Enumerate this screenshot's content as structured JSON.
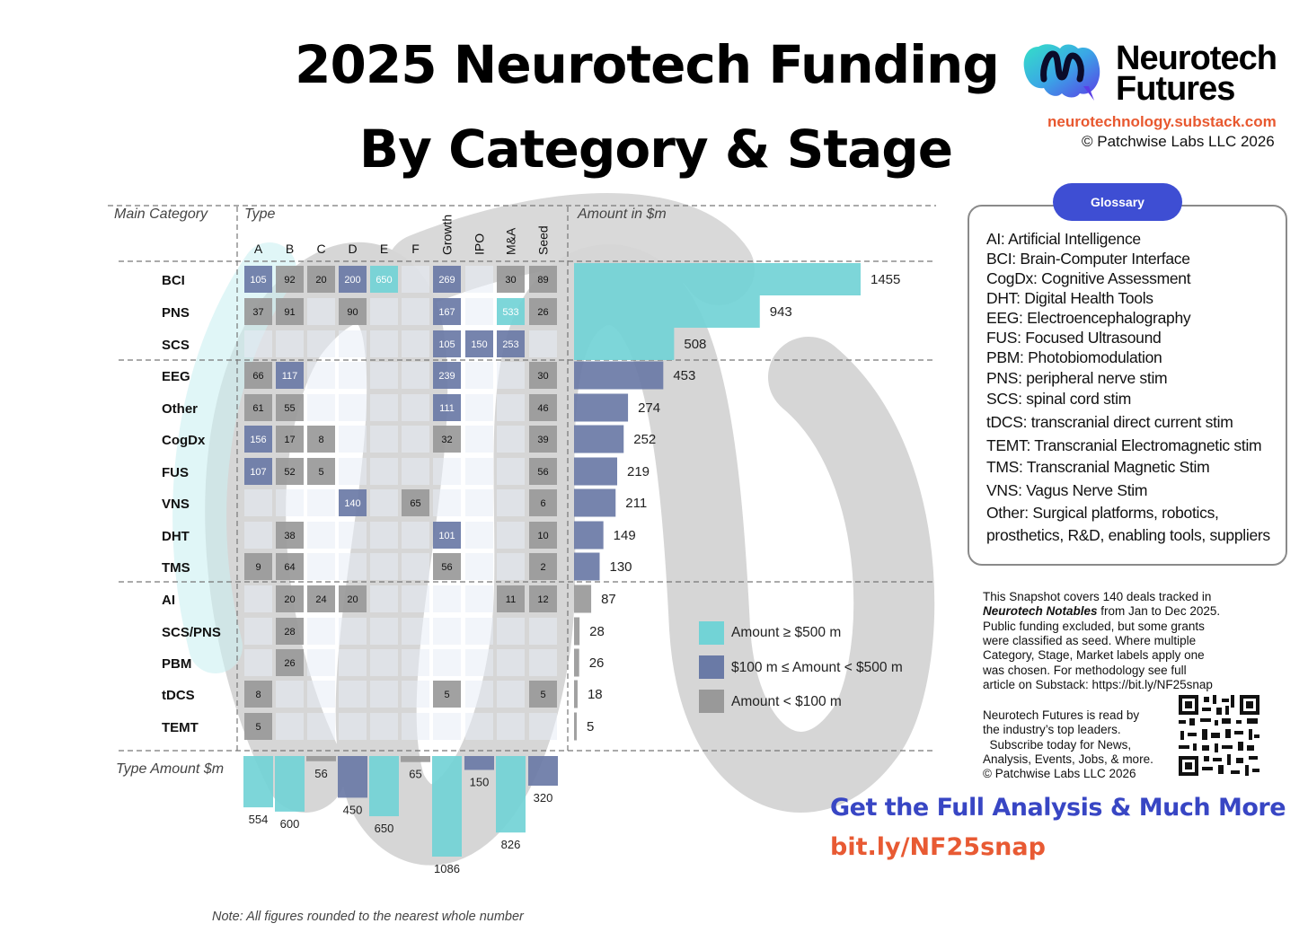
{
  "header": {
    "title_line1": "2025 Neurotech Funding",
    "title_line2": "By Category & Stage"
  },
  "brand": {
    "name_line1": "Neurotech",
    "name_line2": "Futures",
    "url": "neurotechnology.substack.com",
    "copyright": "© Patchwise Labs LLC 2026"
  },
  "glossary": {
    "title": "Glossary",
    "items": [
      "AI: Artificial Intelligence",
      "BCI: Brain-Computer Interface",
      "CogDx: Cognitive Assessment",
      "DHT: Digital Health Tools",
      "EEG: Electroencephalography",
      "FUS: Focused Ultrasound",
      "PBM: Photobiomodulation",
      "PNS: peripheral nerve stim",
      "SCS: spinal cord stim",
      "tDCS: transcranial direct current stim",
      "TEMT: Transcranial Electromagnetic stim",
      "TMS: Transcranial Magnetic Stim",
      "VNS: Vagus Nerve Stim",
      "Other: Surgical platforms, robotics,",
      "prosthetics, R&D, enabling tools, suppliers"
    ]
  },
  "snapshot_note": {
    "lines": [
      "This Snapshot covers 140 deals tracked in",
      "Neurotech Notables from Jan to Dec 2025.",
      "Public funding excluded, but some grants",
      "were classified as seed. Where multiple",
      "Category, Stage, Market labels apply one",
      "was chosen. For methodology see full",
      "article on Substack: https://bit.ly/NF25snap"
    ]
  },
  "reader_note": {
    "lines": [
      "Neurotech Futures is read by",
      "the industry’s top leaders.",
      "  Subscribe today for News,",
      "Analysis, Events, Jobs, & more.",
      "© Patchwise Labs LLC 2026"
    ]
  },
  "cta": {
    "line1": "Get the Full Analysis & Much More",
    "line2": "bit.ly/NF25snap"
  },
  "footnote": "Note: All figures rounded to the nearest whole number",
  "colors": {
    "high": "#72d3d6",
    "mid": "#6a7aa6",
    "low": "#999999",
    "accent_blue": "#3e4ed3",
    "accent_orange": "#e8582f"
  },
  "chart_data": {
    "type": "heatmap",
    "col_header_main": "Main Category",
    "col_header_type": "Type",
    "col_header_amount": "Amount in $m",
    "row_header_type_amount": "Type Amount $m",
    "columns": [
      "A",
      "B",
      "C",
      "D",
      "E",
      "F",
      "Growth",
      "IPO",
      "M&A",
      "Seed"
    ],
    "groups": [
      [
        "BCI",
        "PNS",
        "SCS"
      ],
      [
        "EEG",
        "Other",
        "CogDx",
        "FUS",
        "VNS",
        "DHT",
        "TMS"
      ],
      [
        "AI",
        "SCS/PNS",
        "PBM",
        "tDCS",
        "TEMT"
      ]
    ],
    "rows": [
      {
        "category": "BCI",
        "cells": [
          105,
          92,
          20,
          200,
          650,
          null,
          269,
          null,
          30,
          89
        ],
        "total": 1455
      },
      {
        "category": "PNS",
        "cells": [
          37,
          91,
          null,
          90,
          null,
          null,
          167,
          null,
          533,
          26
        ],
        "total": 943
      },
      {
        "category": "SCS",
        "cells": [
          null,
          null,
          null,
          null,
          null,
          null,
          105,
          150,
          253,
          null
        ],
        "total": 508
      },
      {
        "category": "EEG",
        "cells": [
          66,
          117,
          null,
          null,
          null,
          null,
          239,
          null,
          null,
          30
        ],
        "total": 453
      },
      {
        "category": "Other",
        "cells": [
          61,
          55,
          null,
          null,
          null,
          null,
          111,
          null,
          null,
          46
        ],
        "total": 274
      },
      {
        "category": "CogDx",
        "cells": [
          156,
          17,
          8,
          null,
          null,
          null,
          32,
          null,
          null,
          39
        ],
        "total": 252
      },
      {
        "category": "FUS",
        "cells": [
          107,
          52,
          5,
          null,
          null,
          null,
          null,
          null,
          null,
          56
        ],
        "total": 219
      },
      {
        "category": "VNS",
        "cells": [
          null,
          null,
          null,
          140,
          null,
          65,
          null,
          null,
          null,
          6
        ],
        "total": 211
      },
      {
        "category": "DHT",
        "cells": [
          null,
          38,
          null,
          null,
          null,
          null,
          101,
          null,
          null,
          10
        ],
        "total": 149
      },
      {
        "category": "TMS",
        "cells": [
          9,
          64,
          null,
          null,
          null,
          null,
          56,
          null,
          null,
          2
        ],
        "total": 130
      },
      {
        "category": "AI",
        "cells": [
          null,
          20,
          24,
          20,
          null,
          null,
          null,
          null,
          11,
          12
        ],
        "total": 87
      },
      {
        "category": "SCS/PNS",
        "cells": [
          null,
          28,
          null,
          null,
          null,
          null,
          null,
          null,
          null,
          null
        ],
        "total": 28
      },
      {
        "category": "PBM",
        "cells": [
          null,
          26,
          null,
          null,
          null,
          null,
          null,
          null,
          null,
          null
        ],
        "total": 26
      },
      {
        "category": "tDCS",
        "cells": [
          8,
          null,
          null,
          null,
          null,
          null,
          5,
          null,
          null,
          5
        ],
        "total": 18
      },
      {
        "category": "TEMT",
        "cells": [
          5,
          null,
          null,
          null,
          null,
          null,
          null,
          null,
          null,
          null
        ],
        "total": 5
      }
    ],
    "type_amounts": [
      554,
      600,
      56,
      450,
      650,
      65,
      1086,
      150,
      826,
      320
    ],
    "legend": [
      {
        "label": "Amount  ≥  $500 m",
        "threshold": "high"
      },
      {
        "label": "$100 m  ≤ Amount  <  $500 m",
        "threshold": "mid"
      },
      {
        "label": "Amount  <  $100 m",
        "threshold": "low"
      }
    ],
    "legend_position": "right",
    "grid": true
  }
}
